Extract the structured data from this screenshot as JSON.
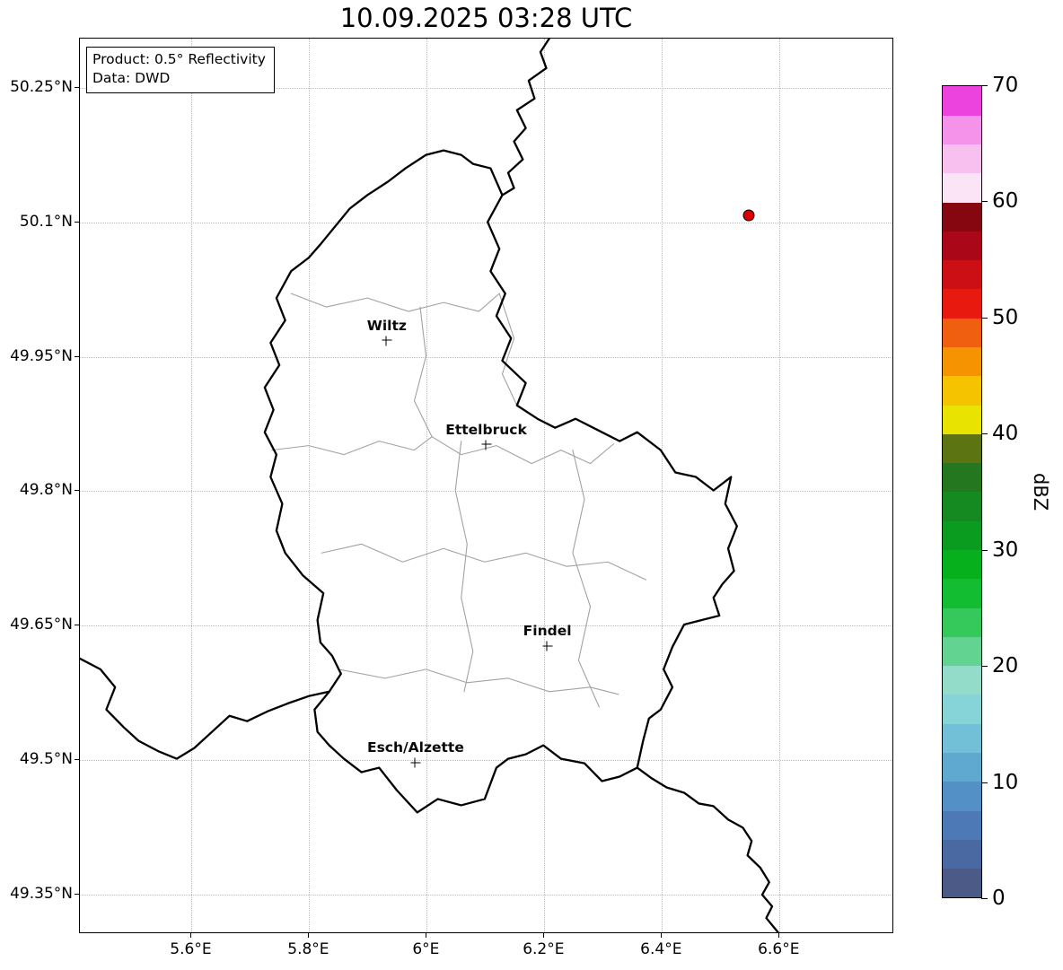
{
  "title": "10.09.2025 03:28 UTC",
  "info_box": {
    "product": "Product: 0.5° Reflectivity",
    "data_source": "Data: DWD"
  },
  "axes": {
    "x": {
      "range": [
        5.41,
        6.795
      ],
      "ticks": [
        {
          "value": 5.6,
          "label": "5.6°E"
        },
        {
          "value": 5.8,
          "label": "5.8°E"
        },
        {
          "value": 6.0,
          "label": "6°E"
        },
        {
          "value": 6.2,
          "label": "6.2°E"
        },
        {
          "value": 6.4,
          "label": "6.4°E"
        },
        {
          "value": 6.6,
          "label": "6.6°E"
        }
      ]
    },
    "y": {
      "range": [
        49.306,
        50.305
      ],
      "ticks": [
        {
          "value": 50.25,
          "label": "50.25°N"
        },
        {
          "value": 50.1,
          "label": "50.1°N"
        },
        {
          "value": 49.95,
          "label": "49.95°N"
        },
        {
          "value": 49.8,
          "label": "49.8°N"
        },
        {
          "value": 49.65,
          "label": "49.65°N"
        },
        {
          "value": 49.5,
          "label": "49.5°N"
        },
        {
          "value": 49.35,
          "label": "49.35°N"
        }
      ]
    }
  },
  "cities": [
    {
      "name": "Wiltz",
      "lon": 5.932,
      "lat": 49.968
    },
    {
      "name": "Ettelbruck",
      "lon": 6.101,
      "lat": 49.852
    },
    {
      "name": "Findel",
      "lon": 6.205,
      "lat": 49.627
    },
    {
      "name": "Esch/Alzette",
      "lon": 5.981,
      "lat": 49.497
    }
  ],
  "radar_marker": {
    "lon": 6.548,
    "lat": 50.108,
    "color": "#dd0000"
  },
  "colorbar": {
    "label": "dBZ",
    "min": 0,
    "max": 70,
    "ticks": [
      0,
      10,
      20,
      30,
      40,
      50,
      60,
      70
    ],
    "colors": [
      "#4c5a87",
      "#4a68a2",
      "#4d7ab7",
      "#5390c5",
      "#5fa8cf",
      "#71c0d7",
      "#86d4d8",
      "#93dcc9",
      "#63d391",
      "#35c85a",
      "#12bd31",
      "#05b01c",
      "#0a9c1e",
      "#148a20",
      "#24761f",
      "#5c7412",
      "#e8e300",
      "#f5c300",
      "#f59300",
      "#f05f10",
      "#e81a10",
      "#cc0f14",
      "#aa0818",
      "#870711",
      "#fae4f5",
      "#f8c0ee",
      "#f592e9",
      "#ec42de"
    ]
  }
}
